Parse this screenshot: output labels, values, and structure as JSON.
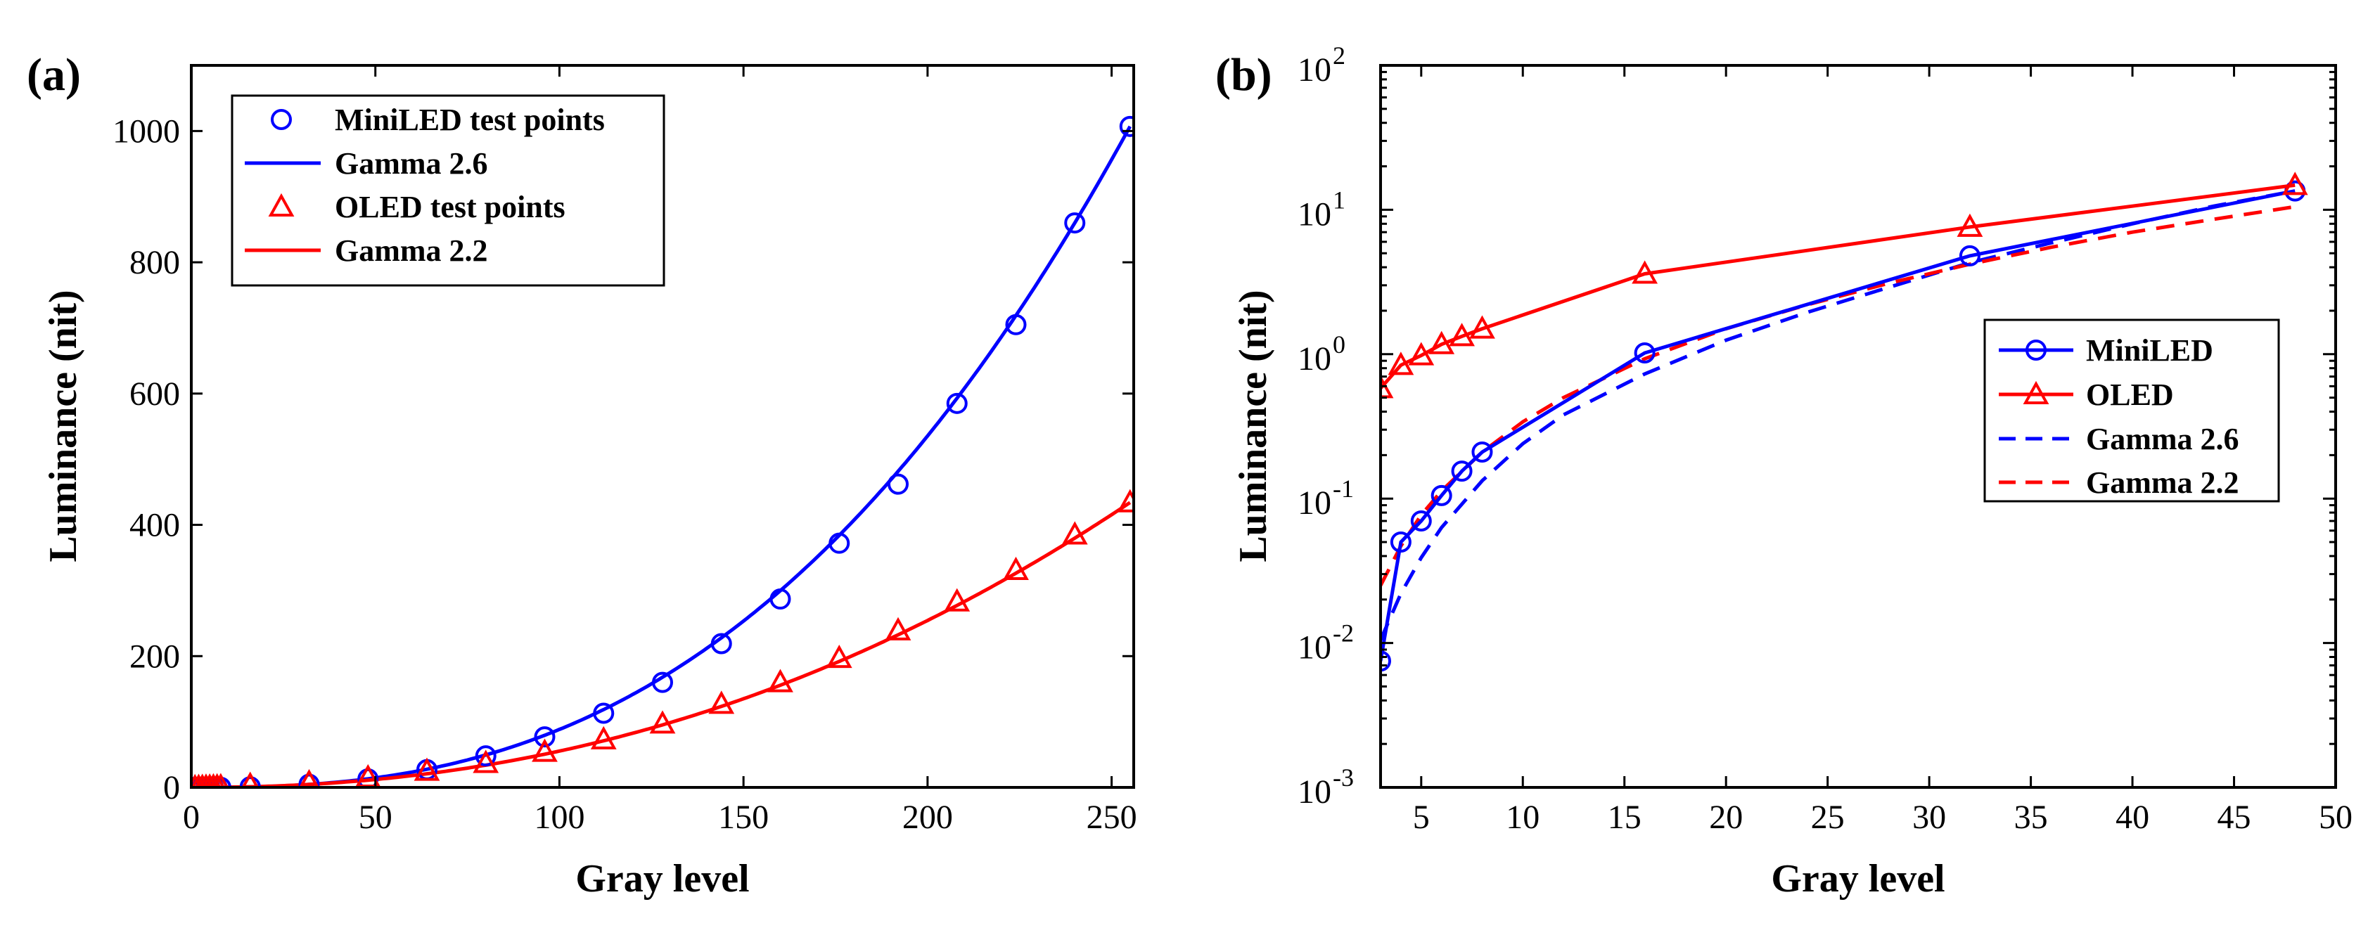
{
  "chart_data": [
    {
      "panel_label": "(a)",
      "type": "scatter+line",
      "xlabel": "Gray level",
      "ylabel": "Luminance (nit)",
      "xlim": [
        0,
        256
      ],
      "ylim": [
        0,
        1100
      ],
      "xticks": [
        "0",
        "50",
        "100",
        "150",
        "200",
        "250"
      ],
      "yticks": [
        "0",
        "200",
        "400",
        "600",
        "800",
        "1000"
      ],
      "legend_position": "top-left",
      "series": [
        {
          "name": "MiniLED test points",
          "kind": "marker-circle",
          "color": "#0000ff",
          "x": [
            1,
            2,
            3,
            4,
            5,
            6,
            7,
            8,
            16,
            32,
            48,
            64,
            80,
            96,
            112,
            128,
            144,
            160,
            176,
            192,
            208,
            224,
            240,
            255
          ],
          "y": [
            0.001,
            0.003,
            0.007,
            0.05,
            0.07,
            0.1,
            0.15,
            0.2,
            1.0,
            4.8,
            13,
            27,
            48,
            77,
            113,
            160,
            219,
            287,
            372,
            462,
            585,
            705,
            860,
            1007
          ]
        },
        {
          "name": "Gamma 2.6",
          "kind": "line",
          "color": "#0000ff",
          "formula": {
            "peak": 1007,
            "gamma": 2.6,
            "max_gray": 255
          }
        },
        {
          "name": "OLED test points",
          "kind": "marker-triangle",
          "color": "#ff0000",
          "x": [
            1,
            2,
            3,
            4,
            5,
            6,
            7,
            8,
            16,
            32,
            48,
            64,
            80,
            96,
            112,
            128,
            144,
            160,
            176,
            192,
            208,
            224,
            240,
            255
          ],
          "y": [
            0.2,
            0.4,
            0.55,
            0.8,
            0.95,
            1.15,
            1.3,
            1.45,
            3.6,
            7.5,
            15,
            25,
            37,
            54,
            73,
            97,
            127,
            160,
            197,
            239,
            283,
            331,
            385,
            434
          ]
        },
        {
          "name": "Gamma 2.2",
          "kind": "line",
          "color": "#ff0000",
          "formula": {
            "peak": 434,
            "gamma": 2.2,
            "max_gray": 255
          }
        }
      ]
    },
    {
      "panel_label": "(b)",
      "type": "line",
      "xlabel": "Gray level",
      "ylabel": "Luminance (nit)",
      "xlim": [
        3,
        50
      ],
      "ylim": [
        0.001,
        100
      ],
      "yscale": "log",
      "xticks": [
        "5",
        "10",
        "15",
        "20",
        "25",
        "30",
        "35",
        "40",
        "45",
        "50"
      ],
      "yticks": [
        {
          "base": "10",
          "exp": "-3"
        },
        {
          "base": "10",
          "exp": "-2"
        },
        {
          "base": "10",
          "exp": "-1"
        },
        {
          "base": "10",
          "exp": "0"
        },
        {
          "base": "10",
          "exp": "1"
        },
        {
          "base": "10",
          "exp": "2"
        }
      ],
      "legend_position": "center-right",
      "series": [
        {
          "name": "MiniLED",
          "kind": "line-circle",
          "color": "#0000ff",
          "x": [
            3,
            4,
            5,
            6,
            7,
            8,
            16,
            32,
            48
          ],
          "y": [
            0.0075,
            0.05,
            0.07,
            0.105,
            0.155,
            0.21,
            1.02,
            4.8,
            13.5
          ]
        },
        {
          "name": "OLED",
          "kind": "line-triangle",
          "color": "#ff0000",
          "x": [
            3,
            4,
            5,
            6,
            7,
            8,
            16,
            32,
            48
          ],
          "y": [
            0.58,
            0.84,
            0.98,
            1.17,
            1.33,
            1.5,
            3.6,
            7.6,
            14.8
          ]
        },
        {
          "name": "Gamma 2.6",
          "kind": "dashed",
          "color": "#0000ff",
          "x": [
            3,
            4,
            5,
            6,
            8,
            10,
            12,
            16,
            20,
            24,
            28,
            32,
            36,
            40,
            44,
            48
          ],
          "y": [
            0.0105,
            0.022,
            0.039,
            0.063,
            0.133,
            0.24,
            0.38,
            0.73,
            1.25,
            1.95,
            2.9,
            4.3,
            5.9,
            8.0,
            10.6,
            13.5
          ]
        },
        {
          "name": "Gamma 2.2",
          "kind": "dashed",
          "color": "#ff0000",
          "x": [
            3,
            4,
            5,
            6,
            8,
            10,
            12,
            16,
            20,
            24,
            28,
            32,
            36,
            40,
            44,
            48
          ],
          "y": [
            0.025,
            0.047,
            0.077,
            0.113,
            0.21,
            0.34,
            0.5,
            0.93,
            1.5,
            2.2,
            3.1,
            4.2,
            5.5,
            7.0,
            8.6,
            10.5
          ]
        }
      ]
    }
  ]
}
